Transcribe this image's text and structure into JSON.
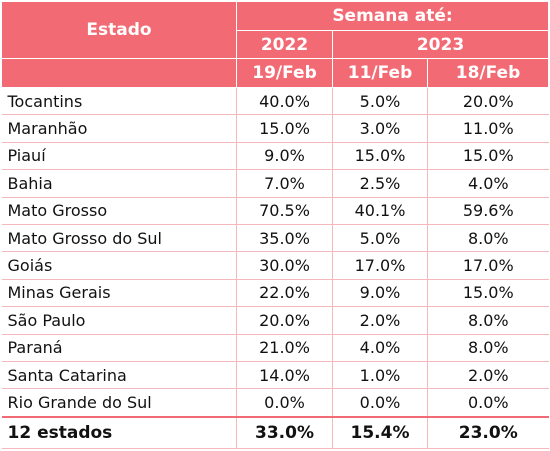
{
  "header": {
    "estado": "Estado",
    "semana": "Semana até:",
    "year_2022": "2022",
    "year_2023": "2023",
    "week_1": "19/Feb",
    "week_2": "11/Feb",
    "week_3": "18/Feb"
  },
  "rows": [
    {
      "estado": "Tocantins",
      "v1": "40.0%",
      "v2": "5.0%",
      "v3": "20.0%"
    },
    {
      "estado": "Maranhão",
      "v1": "15.0%",
      "v2": "3.0%",
      "v3": "11.0%"
    },
    {
      "estado": "Piauí",
      "v1": "9.0%",
      "v2": "15.0%",
      "v3": "15.0%"
    },
    {
      "estado": "Bahia",
      "v1": "7.0%",
      "v2": "2.5%",
      "v3": "4.0%"
    },
    {
      "estado": "Mato Grosso",
      "v1": "70.5%",
      "v2": "40.1%",
      "v3": "59.6%"
    },
    {
      "estado": "Mato Grosso do Sul",
      "v1": "35.0%",
      "v2": "5.0%",
      "v3": "8.0%"
    },
    {
      "estado": "Goiás",
      "v1": "30.0%",
      "v2": "17.0%",
      "v3": "17.0%"
    },
    {
      "estado": "Minas Gerais",
      "v1": "22.0%",
      "v2": "9.0%",
      "v3": "15.0%"
    },
    {
      "estado": "São Paulo",
      "v1": "20.0%",
      "v2": "2.0%",
      "v3": "8.0%"
    },
    {
      "estado": "Paraná",
      "v1": "21.0%",
      "v2": "4.0%",
      "v3": "8.0%"
    },
    {
      "estado": "Santa Catarina",
      "v1": "14.0%",
      "v2": "1.0%",
      "v3": "2.0%"
    },
    {
      "estado": "Rio Grande do Sul",
      "v1": "0.0%",
      "v2": "0.0%",
      "v3": "0.0%"
    }
  ],
  "total": {
    "estado": "12 estados",
    "v1": "33.0%",
    "v2": "15.4%",
    "v3": "23.0%"
  },
  "colors": {
    "header_bg": "#f26b74",
    "row_border": "#f4b8bd"
  }
}
